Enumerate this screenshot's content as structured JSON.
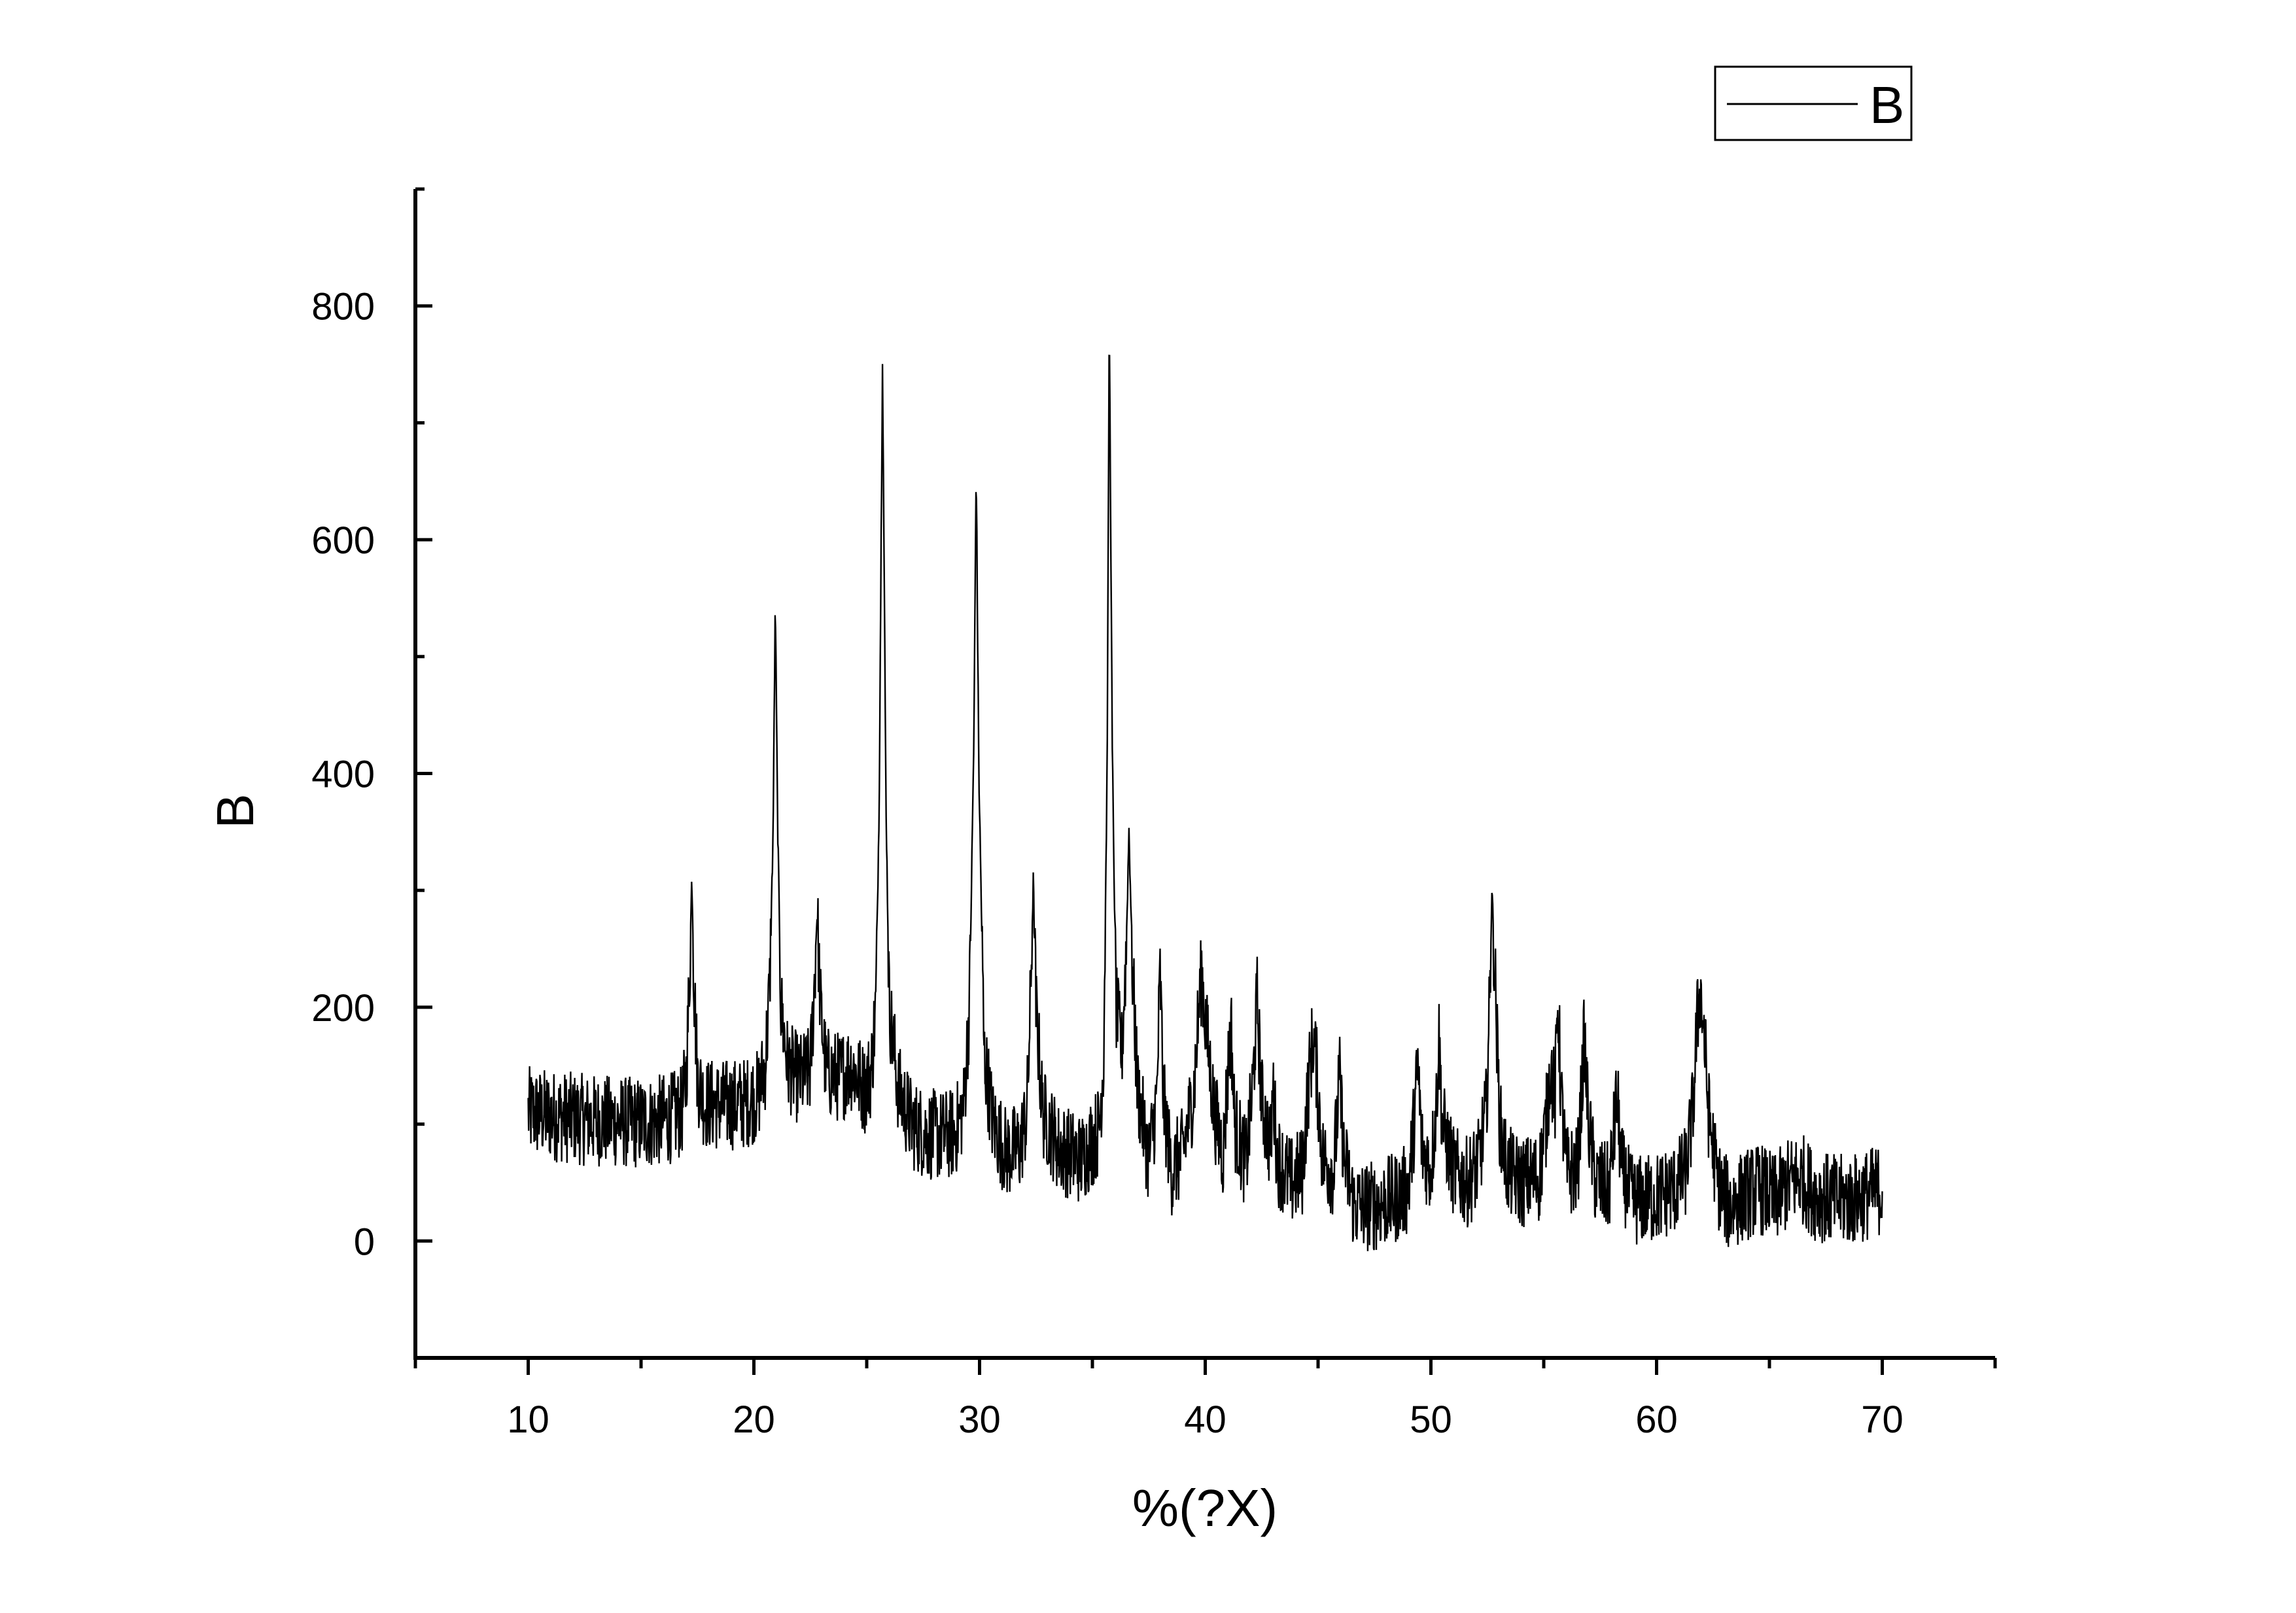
{
  "chart_data": {
    "type": "line",
    "title": "",
    "xlabel": "%(?X)",
    "ylabel": "B",
    "xlim": [
      5,
      75
    ],
    "ylim": [
      -100,
      900
    ],
    "xticks": [
      10,
      20,
      30,
      40,
      50,
      60,
      70
    ],
    "yticks": [
      0,
      200,
      400,
      600,
      800
    ],
    "grid": false,
    "legend_position": "top-right",
    "series": [
      {
        "name": "B",
        "color": "#000000",
        "background": 104,
        "points": [
          [
            10.0,
            110
          ],
          [
            10.8,
            108
          ],
          [
            11.6,
            106
          ],
          [
            12.4,
            104
          ],
          [
            13.2,
            103
          ],
          [
            14.0,
            102
          ],
          [
            14.8,
            101
          ],
          [
            15.6,
            102
          ],
          [
            16.4,
            106
          ],
          [
            16.8,
            110
          ],
          [
            17.0,
            140
          ],
          [
            17.15,
            225
          ],
          [
            17.25,
            313
          ],
          [
            17.35,
            220
          ],
          [
            17.5,
            140
          ],
          [
            17.8,
            118
          ],
          [
            18.6,
            116
          ],
          [
            19.6,
            118
          ],
          [
            20.2,
            125
          ],
          [
            20.5,
            150
          ],
          [
            20.7,
            215
          ],
          [
            20.85,
            350
          ],
          [
            20.95,
            548
          ],
          [
            21.05,
            360
          ],
          [
            21.2,
            200
          ],
          [
            21.5,
            150
          ],
          [
            22.0,
            138
          ],
          [
            22.5,
            145
          ],
          [
            22.65,
            205
          ],
          [
            22.8,
            281
          ],
          [
            22.95,
            200
          ],
          [
            23.2,
            145
          ],
          [
            23.8,
            140
          ],
          [
            24.3,
            150
          ],
          [
            24.6,
            140
          ],
          [
            24.9,
            130
          ],
          [
            25.2,
            145
          ],
          [
            25.4,
            200
          ],
          [
            25.55,
            370
          ],
          [
            25.7,
            759
          ],
          [
            25.85,
            380
          ],
          [
            26.0,
            200
          ],
          [
            26.4,
            130
          ],
          [
            27.0,
            100
          ],
          [
            27.6,
            92
          ],
          [
            28.3,
            90
          ],
          [
            28.9,
            92
          ],
          [
            29.3,
            115
          ],
          [
            29.55,
            200
          ],
          [
            29.75,
            430
          ],
          [
            29.85,
            665
          ],
          [
            29.97,
            400
          ],
          [
            30.2,
            160
          ],
          [
            30.6,
            100
          ],
          [
            31.2,
            75
          ],
          [
            31.8,
            80
          ],
          [
            32.1,
            110
          ],
          [
            32.25,
            200
          ],
          [
            32.38,
            308
          ],
          [
            32.5,
            200
          ],
          [
            32.8,
            110
          ],
          [
            33.5,
            80
          ],
          [
            34.5,
            70
          ],
          [
            35.3,
            95
          ],
          [
            35.5,
            160
          ],
          [
            35.65,
            400
          ],
          [
            35.75,
            790
          ],
          [
            35.88,
            420
          ],
          [
            36.05,
            200
          ],
          [
            36.3,
            160
          ],
          [
            36.5,
            250
          ],
          [
            36.62,
            352
          ],
          [
            36.78,
            230
          ],
          [
            37.0,
            130
          ],
          [
            37.5,
            70
          ],
          [
            37.85,
            120
          ],
          [
            38.0,
            228
          ],
          [
            38.15,
            120
          ],
          [
            38.5,
            60
          ],
          [
            39.0,
            75
          ],
          [
            39.5,
            130
          ],
          [
            39.72,
            200
          ],
          [
            39.85,
            230
          ],
          [
            40.0,
            190
          ],
          [
            40.4,
            110
          ],
          [
            40.8,
            75
          ],
          [
            41.05,
            160
          ],
          [
            41.15,
            182
          ],
          [
            41.3,
            100
          ],
          [
            41.8,
            65
          ],
          [
            42.1,
            130
          ],
          [
            42.3,
            207
          ],
          [
            42.5,
            120
          ],
          [
            42.9,
            80
          ],
          [
            43.0,
            132
          ],
          [
            43.2,
            70
          ],
          [
            43.8,
            50
          ],
          [
            44.3,
            60
          ],
          [
            44.6,
            140
          ],
          [
            44.78,
            175
          ],
          [
            44.92,
            150
          ],
          [
            45.2,
            70
          ],
          [
            45.7,
            60
          ],
          [
            45.95,
            140
          ],
          [
            46.15,
            70
          ],
          [
            46.6,
            30
          ],
          [
            47.4,
            30
          ],
          [
            48.3,
            35
          ],
          [
            49.0,
            45
          ],
          [
            49.25,
            100
          ],
          [
            49.42,
            150
          ],
          [
            49.6,
            80
          ],
          [
            50.0,
            60
          ],
          [
            50.25,
            120
          ],
          [
            50.35,
            178
          ],
          [
            50.5,
            100
          ],
          [
            51.0,
            60
          ],
          [
            51.6,
            50
          ],
          [
            52.1,
            65
          ],
          [
            52.45,
            110
          ],
          [
            52.6,
            200
          ],
          [
            52.7,
            302
          ],
          [
            52.85,
            220
          ],
          [
            53.05,
            100
          ],
          [
            53.4,
            60
          ],
          [
            54.0,
            50
          ],
          [
            54.8,
            55
          ],
          [
            55.1,
            100
          ],
          [
            55.3,
            150
          ],
          [
            55.5,
            120
          ],
          [
            55.62,
            207
          ],
          [
            55.78,
            120
          ],
          [
            56.0,
            60
          ],
          [
            56.5,
            60
          ],
          [
            56.8,
            175
          ],
          [
            56.98,
            100
          ],
          [
            57.3,
            50
          ],
          [
            57.9,
            45
          ],
          [
            58.25,
            124
          ],
          [
            58.45,
            60
          ],
          [
            58.9,
            35
          ],
          [
            59.5,
            35
          ],
          [
            60.1,
            38
          ],
          [
            60.8,
            45
          ],
          [
            61.3,
            60
          ],
          [
            61.6,
            110
          ],
          [
            61.78,
            180
          ],
          [
            61.92,
            217
          ],
          [
            62.1,
            180
          ],
          [
            62.3,
            110
          ],
          [
            62.7,
            50
          ],
          [
            63.2,
            30
          ],
          [
            64.0,
            40
          ],
          [
            64.6,
            45
          ],
          [
            65.2,
            35
          ],
          [
            65.9,
            50
          ],
          [
            66.4,
            55
          ],
          [
            67.0,
            40
          ],
          [
            67.8,
            35
          ],
          [
            68.6,
            35
          ],
          [
            69.4,
            40
          ],
          [
            70.0,
            45
          ]
        ],
        "noise_amplitude": 40
      }
    ]
  }
}
